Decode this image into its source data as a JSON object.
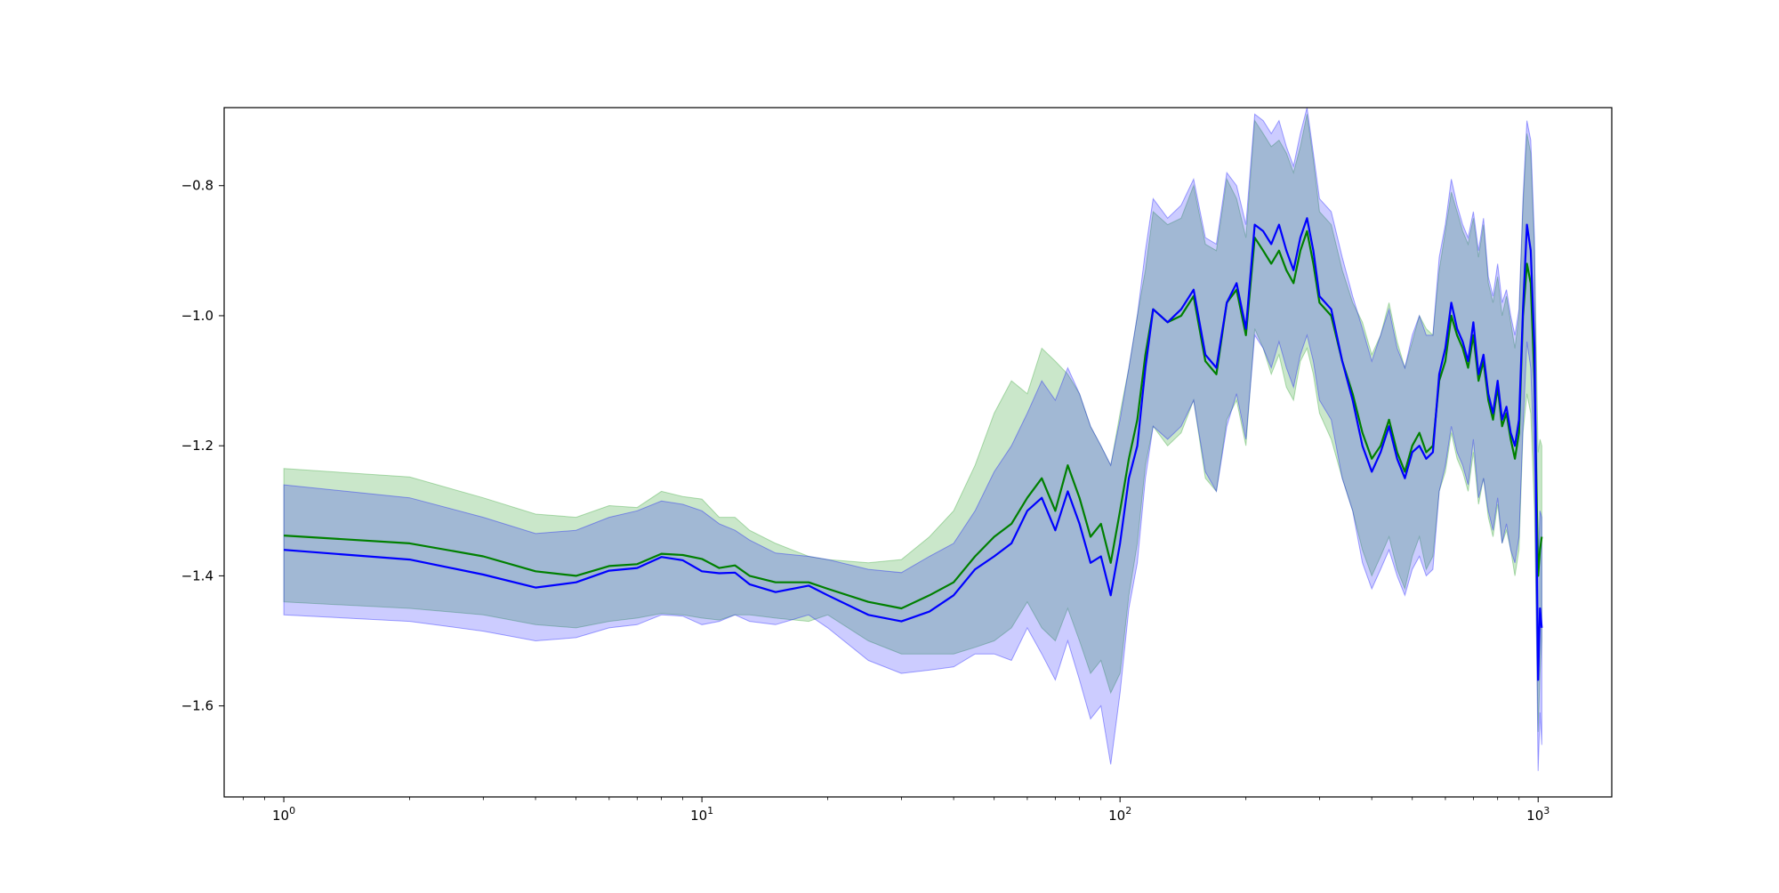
{
  "chart_data": {
    "type": "line",
    "xscale": "log",
    "xlim": [
      0.72,
      1500
    ],
    "ylim": [
      -1.74,
      -0.68
    ],
    "grid": false,
    "legend": false,
    "x_ticks": [
      {
        "value": 1,
        "base": "10",
        "exp": "0"
      },
      {
        "value": 10,
        "base": "10",
        "exp": "1"
      },
      {
        "value": 100,
        "base": "10",
        "exp": "2"
      },
      {
        "value": 1000,
        "base": "10",
        "exp": "3"
      }
    ],
    "y_ticks": [
      {
        "value": -1.6,
        "label": "−1.6"
      },
      {
        "value": -1.4,
        "label": "−1.4"
      },
      {
        "value": -1.2,
        "label": "−1.2"
      },
      {
        "value": -1.0,
        "label": "−1.0"
      },
      {
        "value": -0.8,
        "label": "−0.8"
      }
    ],
    "series": [
      {
        "color": "#008000",
        "band_color": "#2ca02c",
        "band_opacity": 0.25,
        "x": [
          1,
          2,
          3,
          4,
          5,
          6,
          7,
          8,
          9,
          10,
          11,
          12,
          13,
          15,
          18,
          20,
          25,
          30,
          35,
          40,
          45,
          50,
          55,
          60,
          65,
          70,
          75,
          80,
          85,
          90,
          95,
          100,
          105,
          110,
          115,
          120,
          130,
          140,
          150,
          160,
          170,
          180,
          190,
          200,
          210,
          220,
          230,
          240,
          250,
          260,
          270,
          280,
          290,
          300,
          320,
          340,
          360,
          380,
          400,
          420,
          440,
          460,
          480,
          500,
          520,
          540,
          560,
          580,
          600,
          620,
          640,
          660,
          680,
          700,
          720,
          740,
          760,
          780,
          800,
          820,
          840,
          860,
          880,
          900,
          920,
          940,
          960,
          980,
          1000,
          1010,
          1020
        ],
        "y": [
          -1.338,
          -1.35,
          -1.37,
          -1.393,
          -1.4,
          -1.385,
          -1.382,
          -1.366,
          -1.368,
          -1.374,
          -1.388,
          -1.384,
          -1.4,
          -1.41,
          -1.41,
          -1.42,
          -1.44,
          -1.45,
          -1.43,
          -1.41,
          -1.37,
          -1.34,
          -1.32,
          -1.28,
          -1.25,
          -1.3,
          -1.23,
          -1.28,
          -1.34,
          -1.32,
          -1.38,
          -1.3,
          -1.22,
          -1.16,
          -1.06,
          -0.99,
          -1.01,
          -1.0,
          -0.97,
          -1.07,
          -1.09,
          -0.98,
          -0.96,
          -1.03,
          -0.88,
          -0.9,
          -0.92,
          -0.9,
          -0.93,
          -0.95,
          -0.9,
          -0.87,
          -0.92,
          -0.98,
          -1.0,
          -1.07,
          -1.12,
          -1.18,
          -1.22,
          -1.2,
          -1.16,
          -1.21,
          -1.24,
          -1.2,
          -1.18,
          -1.21,
          -1.2,
          -1.1,
          -1.07,
          -1.0,
          -1.03,
          -1.05,
          -1.08,
          -1.03,
          -1.1,
          -1.07,
          -1.13,
          -1.16,
          -1.11,
          -1.17,
          -1.15,
          -1.19,
          -1.22,
          -1.18,
          -1.0,
          -0.92,
          -0.95,
          -1.1,
          -1.4,
          -1.36,
          -1.34
        ],
        "upper": [
          -1.235,
          -1.248,
          -1.28,
          -1.305,
          -1.31,
          -1.292,
          -1.295,
          -1.27,
          -1.278,
          -1.282,
          -1.31,
          -1.31,
          -1.33,
          -1.35,
          -1.37,
          -1.375,
          -1.38,
          -1.375,
          -1.34,
          -1.3,
          -1.23,
          -1.15,
          -1.1,
          -1.12,
          -1.05,
          -1.07,
          -1.09,
          -1.12,
          -1.17,
          -1.2,
          -1.23,
          -1.15,
          -1.08,
          -1.0,
          -0.93,
          -0.84,
          -0.86,
          -0.85,
          -0.8,
          -0.89,
          -0.9,
          -0.79,
          -0.82,
          -0.88,
          -0.7,
          -0.72,
          -0.74,
          -0.73,
          -0.75,
          -0.78,
          -0.74,
          -0.69,
          -0.76,
          -0.84,
          -0.86,
          -0.93,
          -0.98,
          -1.01,
          -1.06,
          -1.03,
          -0.98,
          -1.04,
          -1.08,
          -1.04,
          -1.0,
          -1.02,
          -1.03,
          -0.93,
          -0.87,
          -0.81,
          -0.84,
          -0.87,
          -0.89,
          -0.85,
          -0.91,
          -0.86,
          -0.95,
          -0.98,
          -0.94,
          -1.0,
          -0.97,
          -1.01,
          -1.05,
          -1.0,
          -0.83,
          -0.72,
          -0.75,
          -0.9,
          -1.21,
          -1.19,
          -1.2
        ],
        "lower": [
          -1.44,
          -1.45,
          -1.46,
          -1.475,
          -1.48,
          -1.47,
          -1.465,
          -1.458,
          -1.46,
          -1.465,
          -1.468,
          -1.46,
          -1.46,
          -1.465,
          -1.47,
          -1.46,
          -1.5,
          -1.52,
          -1.52,
          -1.52,
          -1.51,
          -1.5,
          -1.48,
          -1.44,
          -1.48,
          -1.5,
          -1.45,
          -1.5,
          -1.55,
          -1.53,
          -1.58,
          -1.55,
          -1.43,
          -1.35,
          -1.23,
          -1.17,
          -1.2,
          -1.18,
          -1.13,
          -1.25,
          -1.27,
          -1.16,
          -1.13,
          -1.2,
          -1.02,
          -1.05,
          -1.09,
          -1.06,
          -1.11,
          -1.13,
          -1.07,
          -1.05,
          -1.09,
          -1.15,
          -1.19,
          -1.25,
          -1.3,
          -1.36,
          -1.4,
          -1.37,
          -1.34,
          -1.39,
          -1.42,
          -1.37,
          -1.34,
          -1.39,
          -1.37,
          -1.27,
          -1.24,
          -1.18,
          -1.22,
          -1.24,
          -1.27,
          -1.21,
          -1.29,
          -1.25,
          -1.31,
          -1.34,
          -1.29,
          -1.35,
          -1.33,
          -1.36,
          -1.4,
          -1.36,
          -1.18,
          -1.12,
          -1.15,
          -1.3,
          -1.64,
          -1.55,
          -1.5
        ]
      },
      {
        "color": "#0000ff",
        "band_color": "#0000ff",
        "band_opacity": 0.2,
        "x": [
          1,
          2,
          3,
          4,
          5,
          6,
          7,
          8,
          9,
          10,
          11,
          12,
          13,
          15,
          18,
          20,
          25,
          30,
          35,
          40,
          45,
          50,
          55,
          60,
          65,
          70,
          75,
          80,
          85,
          90,
          95,
          100,
          105,
          110,
          115,
          120,
          130,
          140,
          150,
          160,
          170,
          180,
          190,
          200,
          210,
          220,
          230,
          240,
          250,
          260,
          270,
          280,
          290,
          300,
          320,
          340,
          360,
          380,
          400,
          420,
          440,
          460,
          480,
          500,
          520,
          540,
          560,
          580,
          600,
          620,
          640,
          660,
          680,
          700,
          720,
          740,
          760,
          780,
          800,
          820,
          840,
          860,
          880,
          900,
          920,
          940,
          960,
          980,
          1000,
          1010,
          1020
        ],
        "y": [
          -1.36,
          -1.375,
          -1.398,
          -1.418,
          -1.41,
          -1.392,
          -1.388,
          -1.371,
          -1.376,
          -1.393,
          -1.396,
          -1.395,
          -1.413,
          -1.425,
          -1.415,
          -1.43,
          -1.46,
          -1.47,
          -1.455,
          -1.43,
          -1.39,
          -1.37,
          -1.35,
          -1.3,
          -1.28,
          -1.33,
          -1.27,
          -1.32,
          -1.38,
          -1.37,
          -1.43,
          -1.35,
          -1.25,
          -1.2,
          -1.08,
          -0.99,
          -1.01,
          -0.99,
          -0.96,
          -1.06,
          -1.08,
          -0.98,
          -0.95,
          -1.02,
          -0.86,
          -0.87,
          -0.89,
          -0.86,
          -0.9,
          -0.93,
          -0.88,
          -0.85,
          -0.9,
          -0.97,
          -0.99,
          -1.07,
          -1.13,
          -1.2,
          -1.24,
          -1.21,
          -1.17,
          -1.22,
          -1.25,
          -1.21,
          -1.2,
          -1.22,
          -1.21,
          -1.09,
          -1.05,
          -0.98,
          -1.02,
          -1.04,
          -1.07,
          -1.01,
          -1.09,
          -1.06,
          -1.12,
          -1.15,
          -1.1,
          -1.16,
          -1.14,
          -1.18,
          -1.2,
          -1.16,
          -0.99,
          -0.86,
          -0.9,
          -1.05,
          -1.56,
          -1.45,
          -1.48
        ],
        "upper": [
          -1.26,
          -1.28,
          -1.31,
          -1.335,
          -1.33,
          -1.31,
          -1.3,
          -1.285,
          -1.29,
          -1.3,
          -1.32,
          -1.33,
          -1.345,
          -1.365,
          -1.37,
          -1.375,
          -1.39,
          -1.395,
          -1.37,
          -1.35,
          -1.3,
          -1.24,
          -1.2,
          -1.15,
          -1.1,
          -1.13,
          -1.08,
          -1.12,
          -1.17,
          -1.2,
          -1.23,
          -1.16,
          -1.08,
          -1.0,
          -0.9,
          -0.82,
          -0.85,
          -0.83,
          -0.79,
          -0.88,
          -0.89,
          -0.78,
          -0.8,
          -0.86,
          -0.69,
          -0.7,
          -0.72,
          -0.7,
          -0.74,
          -0.77,
          -0.72,
          -0.68,
          -0.75,
          -0.82,
          -0.84,
          -0.91,
          -0.97,
          -1.02,
          -1.07,
          -1.03,
          -0.99,
          -1.05,
          -1.08,
          -1.03,
          -1.0,
          -1.03,
          -1.03,
          -0.91,
          -0.86,
          -0.79,
          -0.83,
          -0.86,
          -0.88,
          -0.84,
          -0.9,
          -0.85,
          -0.94,
          -0.97,
          -0.92,
          -0.98,
          -0.96,
          -1.0,
          -1.03,
          -0.99,
          -0.82,
          -0.7,
          -0.73,
          -0.88,
          -1.39,
          -1.3,
          -1.31
        ],
        "lower": [
          -1.46,
          -1.47,
          -1.485,
          -1.5,
          -1.495,
          -1.48,
          -1.475,
          -1.46,
          -1.462,
          -1.475,
          -1.47,
          -1.46,
          -1.47,
          -1.475,
          -1.46,
          -1.48,
          -1.53,
          -1.55,
          -1.545,
          -1.54,
          -1.52,
          -1.52,
          -1.53,
          -1.48,
          -1.52,
          -1.56,
          -1.5,
          -1.56,
          -1.62,
          -1.6,
          -1.69,
          -1.58,
          -1.45,
          -1.38,
          -1.25,
          -1.17,
          -1.19,
          -1.17,
          -1.13,
          -1.24,
          -1.27,
          -1.17,
          -1.12,
          -1.19,
          -1.03,
          -1.05,
          -1.08,
          -1.04,
          -1.08,
          -1.11,
          -1.06,
          -1.03,
          -1.07,
          -1.13,
          -1.16,
          -1.25,
          -1.3,
          -1.38,
          -1.42,
          -1.39,
          -1.36,
          -1.4,
          -1.43,
          -1.39,
          -1.37,
          -1.4,
          -1.39,
          -1.27,
          -1.23,
          -1.17,
          -1.21,
          -1.23,
          -1.26,
          -1.19,
          -1.28,
          -1.25,
          -1.3,
          -1.33,
          -1.28,
          -1.35,
          -1.32,
          -1.36,
          -1.38,
          -1.34,
          -1.17,
          -1.04,
          -1.08,
          -1.24,
          -1.7,
          -1.61,
          -1.66
        ]
      }
    ]
  }
}
